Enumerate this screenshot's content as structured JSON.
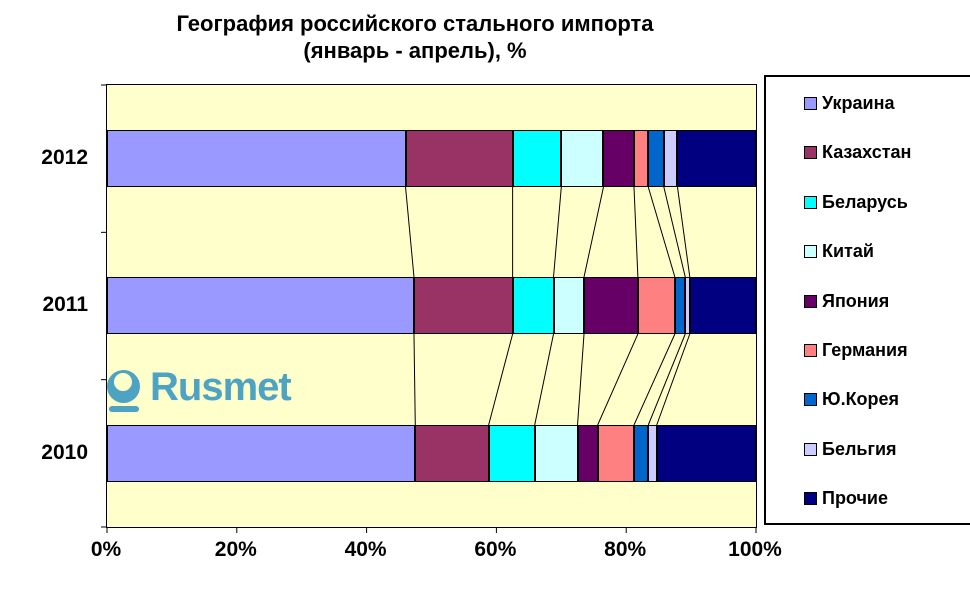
{
  "title": {
    "line1": "География российского стального импорта",
    "line2": "(январь - апрель), %"
  },
  "watermark": {
    "text": "Rusmet",
    "color": "#4FA3C2"
  },
  "colors": {
    "plot_background": "#FFFFCC",
    "page_background": "#FFFFFF",
    "border": "#000000"
  },
  "axis": {
    "x_tick_labels": [
      "0%",
      "20%",
      "40%",
      "60%",
      "80%",
      "100%"
    ]
  },
  "chart_data": {
    "type": "bar",
    "orientation": "horizontal",
    "stacked": true,
    "unit": "%",
    "title": "География российского стального импорта (январь - апрель), %",
    "categories": [
      "2012",
      "2011",
      "2010"
    ],
    "series": [
      {
        "name": "Украина",
        "color": "#9999FF",
        "values": [
          46.0,
          47.3,
          47.5
        ]
      },
      {
        "name": "Казахстан",
        "color": "#993366",
        "values": [
          16.5,
          15.2,
          11.3
        ]
      },
      {
        "name": "Беларусь",
        "color": "#00FFFF",
        "values": [
          7.5,
          6.3,
          7.1
        ]
      },
      {
        "name": "Китай",
        "color": "#CCFFFF",
        "values": [
          6.5,
          4.7,
          6.6
        ]
      },
      {
        "name": "Япония",
        "color": "#660066",
        "values": [
          4.7,
          8.3,
          3.1
        ]
      },
      {
        "name": "Германия",
        "color": "#FF8080",
        "values": [
          2.2,
          5.7,
          5.6
        ]
      },
      {
        "name": "Ю.Корея",
        "color": "#0066CC",
        "values": [
          2.4,
          1.6,
          2.2
        ]
      },
      {
        "name": "Бельгия",
        "color": "#CCCCFF",
        "values": [
          2.1,
          0.7,
          1.3
        ]
      },
      {
        "name": "Прочие",
        "color": "#000080",
        "values": [
          12.1,
          10.2,
          15.3
        ]
      }
    ],
    "xlim": [
      0,
      100
    ],
    "x_ticks": [
      0,
      20,
      40,
      60,
      80,
      100
    ],
    "legend_position": "right",
    "series_lines": true,
    "grid": false
  }
}
